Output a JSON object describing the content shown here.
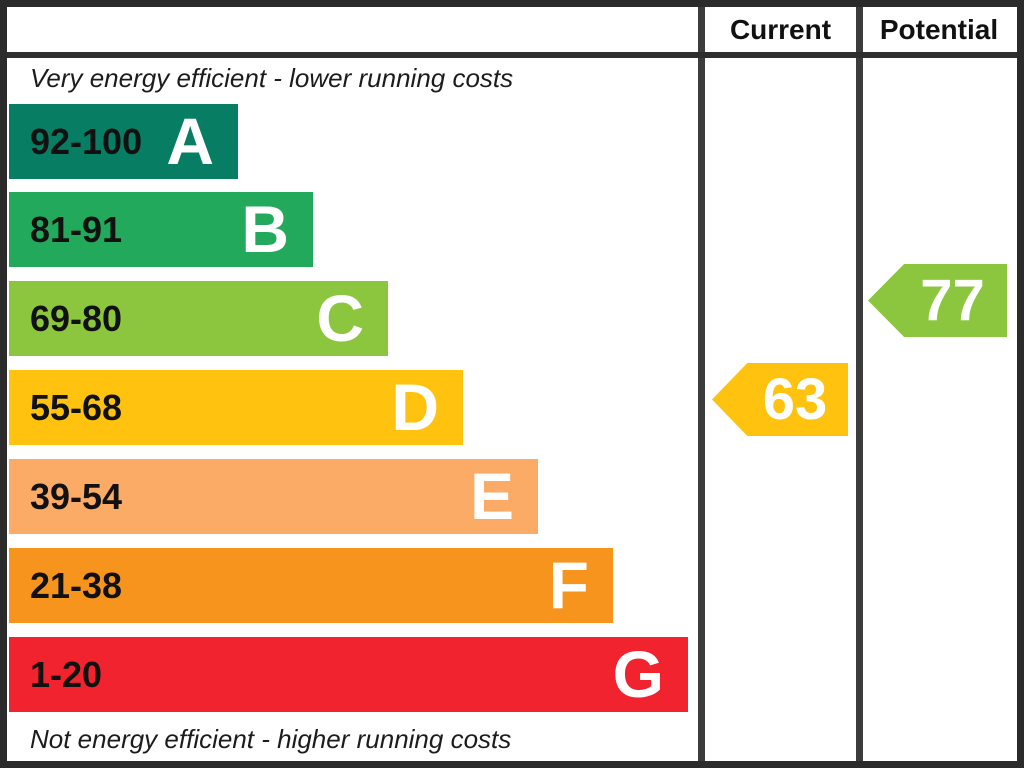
{
  "header": {
    "current_label": "Current",
    "potential_label": "Potential"
  },
  "captions": {
    "top": "Very energy efficient - lower running costs",
    "bottom": "Not energy efficient - higher running costs"
  },
  "bands": [
    {
      "letter": "A",
      "range": "92-100",
      "color": "#077e64"
    },
    {
      "letter": "B",
      "range": "81-91",
      "color": "#22a95c"
    },
    {
      "letter": "C",
      "range": "69-80",
      "color": "#8cc63f"
    },
    {
      "letter": "D",
      "range": "55-68",
      "color": "#ffc20e"
    },
    {
      "letter": "E",
      "range": "39-54",
      "color": "#fbab66"
    },
    {
      "letter": "F",
      "range": "21-38",
      "color": "#f7941e"
    },
    {
      "letter": "G",
      "range": "1-20",
      "color": "#f0232e"
    }
  ],
  "arrows": {
    "current": {
      "value": "63",
      "band": "D",
      "color": "#ffc20e"
    },
    "potential": {
      "value": "77",
      "band": "C",
      "color": "#8cc63f"
    }
  },
  "chart_data": {
    "type": "bar",
    "title": "Energy efficiency rating bands",
    "categories": [
      "A",
      "B",
      "C",
      "D",
      "E",
      "F",
      "G"
    ],
    "range_labels": [
      "92-100",
      "81-91",
      "69-80",
      "55-68",
      "39-54",
      "21-38",
      "1-20"
    ],
    "band_ranges": [
      [
        92,
        100
      ],
      [
        81,
        91
      ],
      [
        69,
        80
      ],
      [
        55,
        68
      ],
      [
        39,
        54
      ],
      [
        21,
        38
      ],
      [
        1,
        20
      ]
    ],
    "band_colors": [
      "#077e64",
      "#22a95c",
      "#8cc63f",
      "#ffc20e",
      "#fbab66",
      "#f7941e",
      "#f0232e"
    ],
    "columns": [
      "Current",
      "Potential"
    ],
    "current_rating": 63,
    "current_band": "D",
    "potential_rating": 77,
    "potential_band": "C",
    "top_caption": "Very energy efficient - lower running costs",
    "bottom_caption": "Not energy efficient - higher running costs",
    "scale": [
      1,
      100
    ],
    "legend_position": "none",
    "grid": false
  }
}
